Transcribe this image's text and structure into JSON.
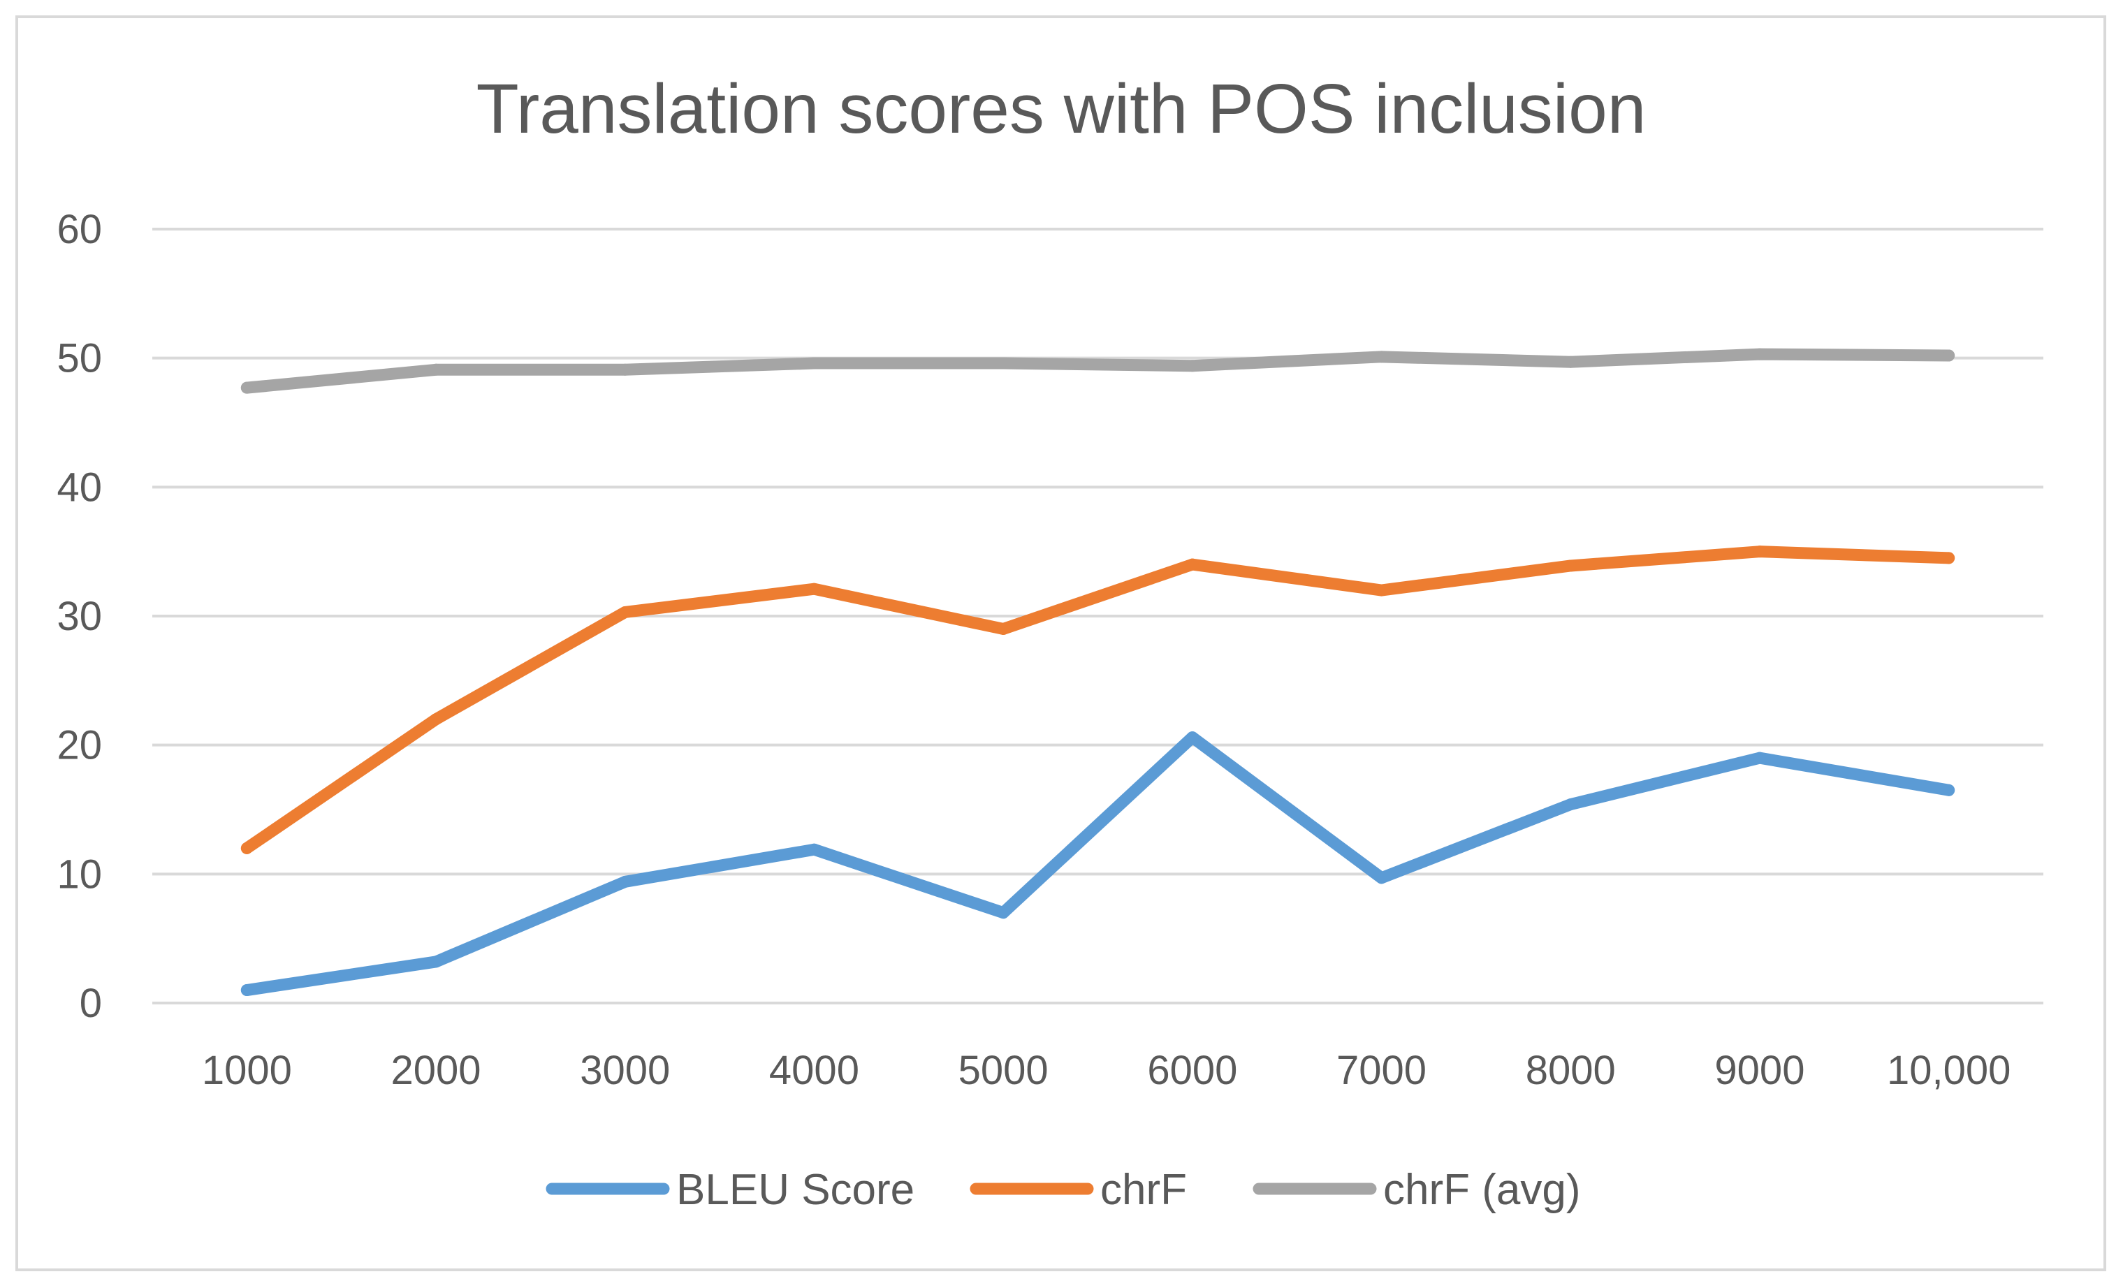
{
  "chart_data": {
    "type": "line",
    "title": "Translation scores with POS inclusion",
    "xlabel": "",
    "ylabel": "",
    "categories": [
      "1000",
      "2000",
      "3000",
      "4000",
      "5000",
      "6000",
      "7000",
      "8000",
      "9000",
      "10,000"
    ],
    "y_ticks": [
      "0",
      "10",
      "20",
      "30",
      "40",
      "50",
      "60"
    ],
    "ylim": [
      0,
      60
    ],
    "grid": true,
    "legend_position": "bottom",
    "series": [
      {
        "name": "BLEU Score",
        "color": "#5b9bd5",
        "values": [
          1.0,
          3.2,
          9.4,
          11.9,
          7.0,
          20.6,
          9.7,
          15.4,
          19.0,
          16.5
        ]
      },
      {
        "name": "chrF",
        "color": "#ed7d31",
        "values": [
          12.0,
          22.0,
          30.3,
          32.1,
          29.0,
          34.0,
          32.0,
          33.9,
          35.0,
          34.5
        ]
      },
      {
        "name": "chrF (avg)",
        "color": "#a5a5a5",
        "values": [
          47.7,
          49.1,
          49.1,
          49.6,
          49.6,
          49.4,
          50.1,
          49.7,
          50.3,
          50.2
        ]
      }
    ]
  }
}
